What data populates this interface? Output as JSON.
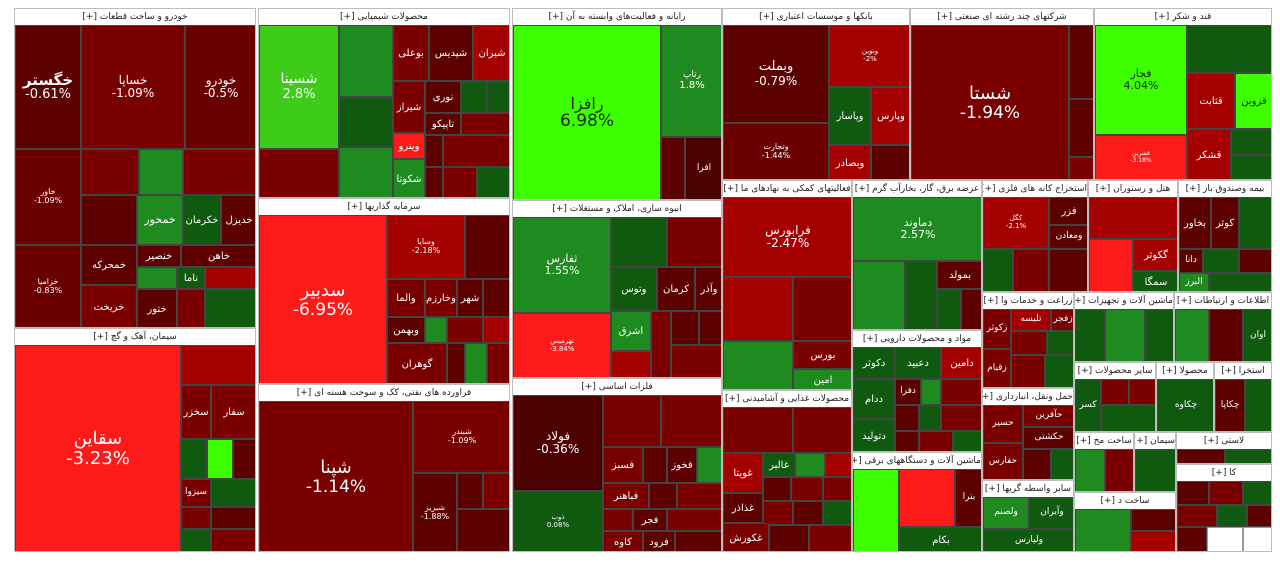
{
  "colors": {
    "dark_red": "#4d0000",
    "deep_red": "#5c0000",
    "mid_red": "#7a0000",
    "red": "#a40000",
    "bright_red": "#ff1a1a",
    "dark_green": "#0f5a0f",
    "mid_green": "#1f8a1f",
    "bright_green": "#3dff00",
    "lime": "#66e04a",
    "white": "#ffffff"
  },
  "sections": [
    {
      "title": "خودرو و ساخت قطعات [+]"
    },
    {
      "title": "محصولات شیمیایی [+]"
    },
    {
      "title": "رایانه و فعالیت‌های وابسته به آن [+]"
    },
    {
      "title": "بانکها و موسسات اعتباری [+]"
    },
    {
      "title": "شرکتهای چند رشته ای صنعتی [+]"
    },
    {
      "title": "قند و شکر [+]"
    },
    {
      "title": "سرمایه گذاریها [+]"
    },
    {
      "title": "انبوه سازی، املاک و مستغلات [+]"
    },
    {
      "title": "فعالیتهای کمکی به نهادهای ما [+]"
    },
    {
      "title": "عرضه برق، گاز، بخارآب گرم [+]"
    },
    {
      "title": "استخراج کانه های فلزی [+]"
    },
    {
      "title": "هتل و رستوران [+]"
    },
    {
      "title": "بیمه وصندوق باز [+]"
    },
    {
      "title": "سیمان، آهک و گچ [+]"
    },
    {
      "title": "فراورده های نفتی، کک و سوخت هسته ای [+]"
    },
    {
      "title": "فلزات اساسی [+]"
    },
    {
      "title": "محصولات غذایی و آشامیدنی [+]"
    },
    {
      "title": "مواد و محصولات دارویی [+]"
    },
    {
      "title": "ماشین آلات و دستگاههای برقی [+]"
    },
    {
      "title": "زراعت و خدمات وا [+]"
    },
    {
      "title": "ماشین آلات و تجهیزات [+]"
    },
    {
      "title": "اطلاعات و ارتباطات [+]"
    },
    {
      "title": "حمل ونقل، انبارداری [+]"
    },
    {
      "title": "سایر محصولات [+]"
    },
    {
      "title": "استخرا [+]"
    },
    {
      "title": "محصولا [+]"
    },
    {
      "title": "ساخت مح [+]"
    },
    {
      "title": "سیمان [+]"
    },
    {
      "title": "لاستی [+]"
    },
    {
      "title": "سایر واسطه گریها [+]"
    },
    {
      "title": "ساخت د [+]"
    },
    {
      "title": "کا [+]"
    }
  ],
  "tiles": [
    {
      "name": "خگستر",
      "pct": "-0.61%"
    },
    {
      "name": "خساپا",
      "pct": "-1.09%"
    },
    {
      "name": "خودرو",
      "pct": "-0.5%"
    },
    {
      "name": "خاور",
      "pct": "-1.09%"
    },
    {
      "name": "خزامیا",
      "pct": "-0.83%"
    },
    {
      "name": "خمحور",
      "pct": ""
    },
    {
      "name": "خکرمان",
      "pct": ""
    },
    {
      "name": "خدیزل",
      "pct": ""
    },
    {
      "name": "خمحرکه",
      "pct": ""
    },
    {
      "name": "خنصیر",
      "pct": ""
    },
    {
      "name": "خاهن",
      "pct": ""
    },
    {
      "name": "خریخت",
      "pct": ""
    },
    {
      "name": "ختور",
      "pct": ""
    },
    {
      "name": "ناما",
      "pct": ""
    },
    {
      "name": "شسینا",
      "pct": "2.8%"
    },
    {
      "name": "شیراز",
      "pct": ""
    },
    {
      "name": "بوعلی",
      "pct": ""
    },
    {
      "name": "شپدیس",
      "pct": ""
    },
    {
      "name": "شیران",
      "pct": ""
    },
    {
      "name": "نوری",
      "pct": ""
    },
    {
      "name": "تاپیکو",
      "pct": ""
    },
    {
      "name": "ویترو",
      "pct": ""
    },
    {
      "name": "شکوتا",
      "pct": ""
    },
    {
      "name": "رافزا",
      "pct": "6.98%"
    },
    {
      "name": "رتاپ",
      "pct": "1.8%"
    },
    {
      "name": "افرا",
      "pct": ""
    },
    {
      "name": "وبملت",
      "pct": "-0.79%"
    },
    {
      "name": "وتجارت",
      "pct": "-1.44%"
    },
    {
      "name": "وبصادر",
      "pct": ""
    },
    {
      "name": "وپاسار",
      "pct": ""
    },
    {
      "name": "ونوین",
      "pct": "-2%"
    },
    {
      "name": "وپارس",
      "pct": ""
    },
    {
      "name": "شستا",
      "pct": "-1.94%"
    },
    {
      "name": "فجار",
      "pct": "4.04%"
    },
    {
      "name": "قثابت",
      "pct": ""
    },
    {
      "name": "قزوین",
      "pct": ""
    },
    {
      "name": "قشکر",
      "pct": ""
    },
    {
      "name": "قشرین",
      "pct": "-3.18%"
    },
    {
      "name": "سدبیر",
      "pct": "-6.95%"
    },
    {
      "name": "وسایا",
      "pct": "-2.18%"
    },
    {
      "name": "والما",
      "pct": ""
    },
    {
      "name": "وخارزم",
      "pct": ""
    },
    {
      "name": "شهر",
      "pct": ""
    },
    {
      "name": "وبهمن",
      "pct": ""
    },
    {
      "name": "گوهران",
      "pct": ""
    },
    {
      "name": "ثفارس",
      "pct": "1.55%"
    },
    {
      "name": "ثهرمیس",
      "pct": "-3.84%"
    },
    {
      "name": "وتوس",
      "pct": ""
    },
    {
      "name": "کرمان",
      "pct": ""
    },
    {
      "name": "وآذر",
      "pct": ""
    },
    {
      "name": "اشرق",
      "pct": ""
    },
    {
      "name": "فرابورس",
      "pct": "-2.47%"
    },
    {
      "name": "بورس",
      "pct": ""
    },
    {
      "name": "امین",
      "pct": ""
    },
    {
      "name": "دماوند",
      "pct": "2.57%"
    },
    {
      "name": "بمولد",
      "pct": ""
    },
    {
      "name": "فزر",
      "pct": ""
    },
    {
      "name": "ومعادن",
      "pct": ""
    },
    {
      "name": "کگل",
      "pct": "-2.1%"
    },
    {
      "name": "کوثر",
      "pct": ""
    },
    {
      "name": "بخاور",
      "pct": ""
    },
    {
      "name": "دانا",
      "pct": ""
    },
    {
      "name": "البرز",
      "pct": ""
    },
    {
      "name": "گکوثر",
      "pct": ""
    },
    {
      "name": "سمگا",
      "pct": ""
    },
    {
      "name": "سقاین",
      "pct": "-3.23%"
    },
    {
      "name": "سخزر",
      "pct": ""
    },
    {
      "name": "سفار",
      "pct": ""
    },
    {
      "name": "سیزوا",
      "pct": ""
    },
    {
      "name": "شپنا",
      "pct": "-1.14%"
    },
    {
      "name": "شبندر",
      "pct": "-1.09%"
    },
    {
      "name": "شبریز",
      "pct": "-1.88%"
    },
    {
      "name": "فولاد",
      "pct": "-0.36%"
    },
    {
      "name": "ذوب",
      "pct": "0.08%"
    },
    {
      "name": "فخوز",
      "pct": ""
    },
    {
      "name": "فسبز",
      "pct": ""
    },
    {
      "name": "فباهنر",
      "pct": ""
    },
    {
      "name": "فجر",
      "pct": ""
    },
    {
      "name": "کاوه",
      "pct": ""
    },
    {
      "name": "فرود",
      "pct": ""
    },
    {
      "name": "غویتا",
      "pct": ""
    },
    {
      "name": "غالبر",
      "pct": ""
    },
    {
      "name": "غذاذر",
      "pct": ""
    },
    {
      "name": "غکورش",
      "pct": ""
    },
    {
      "name": "دکوثر",
      "pct": ""
    },
    {
      "name": "ددام",
      "pct": ""
    },
    {
      "name": "دتولید",
      "pct": ""
    },
    {
      "name": "دعبید",
      "pct": ""
    },
    {
      "name": "دامین",
      "pct": ""
    },
    {
      "name": "دفرا",
      "pct": ""
    },
    {
      "name": "بکام",
      "pct": ""
    },
    {
      "name": "بترا",
      "pct": ""
    },
    {
      "name": "زکوثر",
      "pct": ""
    },
    {
      "name": "زقیام",
      "pct": ""
    },
    {
      "name": "تلیسه",
      "pct": ""
    },
    {
      "name": "زفجر",
      "pct": ""
    },
    {
      "name": "حسیر",
      "pct": ""
    },
    {
      "name": "حآفرین",
      "pct": ""
    },
    {
      "name": "حکشتی",
      "pct": ""
    },
    {
      "name": "حفارس",
      "pct": ""
    },
    {
      "name": "ولصنم",
      "pct": ""
    },
    {
      "name": "ولپارس",
      "pct": ""
    },
    {
      "name": "وآیران",
      "pct": ""
    },
    {
      "name": "چکاوه",
      "pct": ""
    },
    {
      "name": "چکاپا",
      "pct": ""
    },
    {
      "name": "کسر",
      "pct": ""
    },
    {
      "name": "اوان",
      "pct": ""
    }
  ]
}
